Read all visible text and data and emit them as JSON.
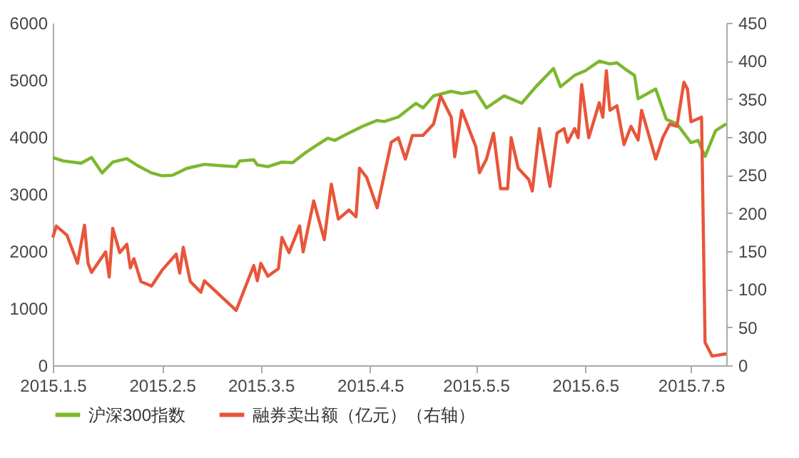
{
  "chart_data": {
    "type": "line",
    "legend": "bottom",
    "grid": false,
    "line_style": "solid",
    "marker": "none",
    "xlim": [
      "2015-01-05",
      "2015-07-15"
    ],
    "xticks": [
      {
        "value": "2015-01-05",
        "label": "2015.1.5"
      },
      {
        "value": "2015-02-05",
        "label": "2015.2.5"
      },
      {
        "value": "2015-03-05",
        "label": "2015.3.5"
      },
      {
        "value": "2015-04-05",
        "label": "2015.4.5"
      },
      {
        "value": "2015-05-05",
        "label": "2015.5.5"
      },
      {
        "value": "2015-06-05",
        "label": "2015.6.5"
      },
      {
        "value": "2015-07-05",
        "label": "2015.7.5"
      }
    ],
    "ylim": [
      0,
      6000
    ],
    "yticks": [
      0,
      1000,
      2000,
      3000,
      4000,
      5000,
      6000
    ],
    "y2lim": [
      0,
      450
    ],
    "y2ticks": [
      0,
      50,
      100,
      150,
      200,
      250,
      300,
      350,
      400,
      450
    ],
    "series": [
      {
        "name": "沪深300指数",
        "color": "#7cb82f",
        "axis": "y",
        "x": [
          "2015-01-05",
          "2015-01-08",
          "2015-01-13",
          "2015-01-16",
          "2015-01-19",
          "2015-01-22",
          "2015-01-26",
          "2015-01-29",
          "2015-02-02",
          "2015-02-05",
          "2015-02-08",
          "2015-02-12",
          "2015-02-17",
          "2015-02-21",
          "2015-02-26",
          "2015-02-27",
          "2015-03-03",
          "2015-03-04",
          "2015-03-07",
          "2015-03-11",
          "2015-03-14",
          "2015-03-18",
          "2015-03-20",
          "2015-03-24",
          "2015-03-26",
          "2015-03-30",
          "2015-04-03",
          "2015-04-07",
          "2015-04-09",
          "2015-04-13",
          "2015-04-18",
          "2015-04-20",
          "2015-04-23",
          "2015-04-28",
          "2015-05-01",
          "2015-05-05",
          "2015-05-08",
          "2015-05-13",
          "2015-05-18",
          "2015-05-22",
          "2015-05-27",
          "2015-05-29",
          "2015-06-02",
          "2015-06-05",
          "2015-06-09",
          "2015-06-12",
          "2015-06-14",
          "2015-06-17",
          "2015-06-19",
          "2015-06-20",
          "2015-06-25",
          "2015-06-28",
          "2015-07-01",
          "2015-07-05",
          "2015-07-07",
          "2015-07-09",
          "2015-07-12",
          "2015-07-15"
        ],
        "values": [
          3640,
          3580,
          3540,
          3640,
          3370,
          3560,
          3620,
          3500,
          3370,
          3320,
          3330,
          3450,
          3520,
          3500,
          3480,
          3580,
          3600,
          3510,
          3480,
          3560,
          3550,
          3740,
          3820,
          3980,
          3940,
          4070,
          4190,
          4290,
          4270,
          4350,
          4590,
          4510,
          4720,
          4800,
          4760,
          4800,
          4510,
          4720,
          4590,
          4880,
          5200,
          4880,
          5080,
          5160,
          5330,
          5280,
          5300,
          5160,
          5080,
          4670,
          4840,
          4310,
          4230,
          3900,
          3940,
          3660,
          4110,
          4230
        ]
      },
      {
        "name": "融券卖出额（亿元）（右轴）",
        "color": "#e8553a",
        "axis": "y2",
        "x": [
          "2015-01-05",
          "2015-01-06",
          "2015-01-09",
          "2015-01-12",
          "2015-01-14",
          "2015-01-15",
          "2015-01-16",
          "2015-01-20",
          "2015-01-21",
          "2015-01-22",
          "2015-01-24",
          "2015-01-26",
          "2015-01-27",
          "2015-01-28",
          "2015-01-30",
          "2015-02-02",
          "2015-02-05",
          "2015-02-09",
          "2015-02-10",
          "2015-02-11",
          "2015-02-13",
          "2015-02-16",
          "2015-02-17",
          "2015-02-26",
          "2015-03-03",
          "2015-03-04",
          "2015-03-05",
          "2015-03-07",
          "2015-03-10",
          "2015-03-11",
          "2015-03-13",
          "2015-03-16",
          "2015-03-17",
          "2015-03-20",
          "2015-03-23",
          "2015-03-25",
          "2015-03-27",
          "2015-03-30",
          "2015-04-01",
          "2015-04-02",
          "2015-04-04",
          "2015-04-07",
          "2015-04-09",
          "2015-04-11",
          "2015-04-13",
          "2015-04-15",
          "2015-04-17",
          "2015-04-20",
          "2015-04-23",
          "2015-04-25",
          "2015-04-28",
          "2015-04-29",
          "2015-05-01",
          "2015-05-05",
          "2015-05-06",
          "2015-05-08",
          "2015-05-10",
          "2015-05-12",
          "2015-05-14",
          "2015-05-15",
          "2015-05-17",
          "2015-05-20",
          "2015-05-21",
          "2015-05-23",
          "2015-05-26",
          "2015-05-28",
          "2015-05-30",
          "2015-05-31",
          "2015-06-02",
          "2015-06-03",
          "2015-06-04",
          "2015-06-06",
          "2015-06-09",
          "2015-06-10",
          "2015-06-11",
          "2015-06-12",
          "2015-06-14",
          "2015-06-16",
          "2015-06-18",
          "2015-06-20",
          "2015-06-21",
          "2015-06-25",
          "2015-06-27",
          "2015-06-29",
          "2015-07-01",
          "2015-07-03",
          "2015-07-04",
          "2015-07-05",
          "2015-07-08",
          "2015-07-09",
          "2015-07-11",
          "2015-07-15"
        ],
        "values": [
          168,
          183,
          171,
          134,
          184,
          134,
          122,
          149,
          116,
          180,
          148,
          159,
          128,
          140,
          110,
          104,
          125,
          146,
          121,
          155,
          110,
          96,
          111,
          72,
          131,
          111,
          134,
          117,
          127,
          168,
          148,
          183,
          149,
          216,
          165,
          238,
          192,
          204,
          195,
          259,
          247,
          207,
          250,
          293,
          299,
          271,
          302,
          302,
          317,
          354,
          326,
          274,
          335,
          287,
          253,
          271,
          305,
          232,
          232,
          299,
          259,
          244,
          229,
          311,
          235,
          305,
          311,
          293,
          311,
          299,
          369,
          299,
          345,
          326,
          387,
          335,
          341,
          290,
          314,
          296,
          335,
          271,
          299,
          317,
          314,
          372,
          363,
          320,
          326,
          30,
          12,
          15
        ]
      }
    ]
  }
}
